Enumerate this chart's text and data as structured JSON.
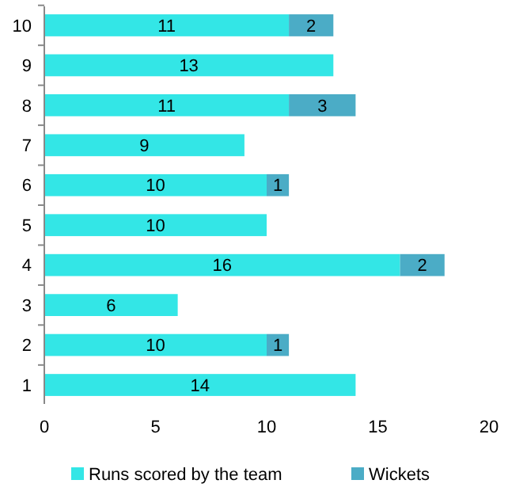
{
  "chart_data": {
    "type": "bar",
    "orientation": "horizontal",
    "stacked": true,
    "categories": [
      "10",
      "9",
      "8",
      "7",
      "6",
      "5",
      "4",
      "3",
      "2",
      "1"
    ],
    "series": [
      {
        "name": "Runs scored by the team",
        "color": "#33e6e6",
        "values": [
          11,
          13,
          11,
          9,
          10,
          10,
          16,
          6,
          10,
          14
        ]
      },
      {
        "name": "Wickets",
        "color": "#4bacc6",
        "values": [
          2,
          null,
          3,
          null,
          1,
          null,
          2,
          null,
          1,
          null
        ]
      }
    ],
    "xlim": [
      0,
      20
    ],
    "xticks": [
      0,
      5,
      10,
      15,
      20
    ],
    "data_labels": true,
    "legend": "bottom",
    "grid": false
  }
}
